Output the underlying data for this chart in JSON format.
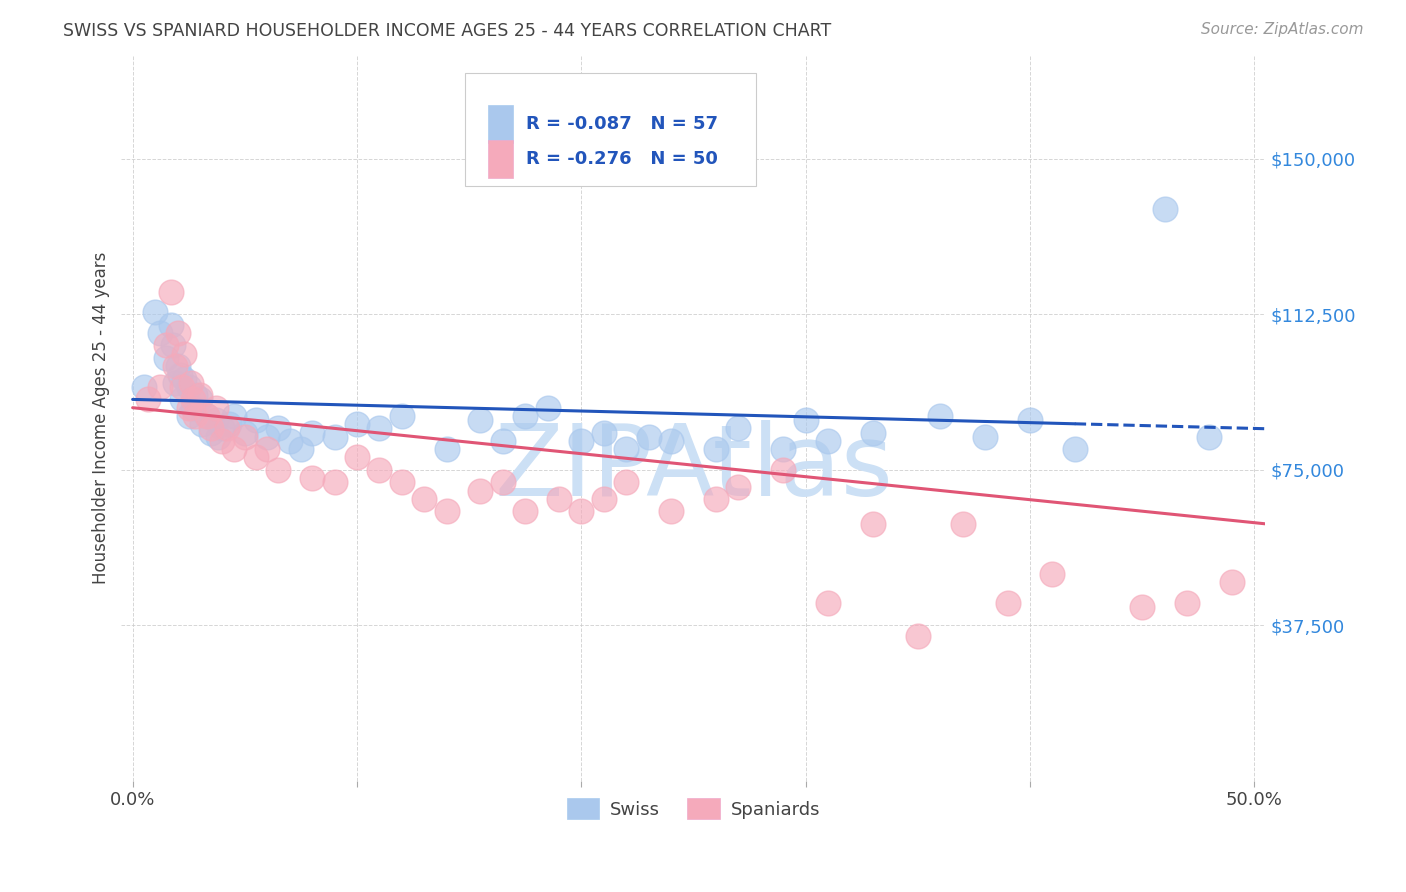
{
  "title": "SWISS VS SPANIARD HOUSEHOLDER INCOME AGES 25 - 44 YEARS CORRELATION CHART",
  "source": "Source: ZipAtlas.com",
  "ylabel": "Householder Income Ages 25 - 44 years",
  "xlim": [
    -0.005,
    0.505
  ],
  "ylim": [
    0,
    175000
  ],
  "yticks": [
    37500,
    75000,
    112500,
    150000
  ],
  "ytick_labels": [
    "$37,500",
    "$75,000",
    "$112,500",
    "$150,000"
  ],
  "xticks": [
    0.0,
    0.1,
    0.2,
    0.3,
    0.4,
    0.5
  ],
  "xtick_labels": [
    "0.0%",
    "",
    "",
    "",
    "",
    "50.0%"
  ],
  "swiss_R": -0.087,
  "swiss_N": 57,
  "spaniard_R": -0.276,
  "spaniard_N": 50,
  "swiss_color": "#aac8ed",
  "spaniard_color": "#f5aabb",
  "swiss_line_color": "#2255bb",
  "spaniard_line_color": "#e05575",
  "background_color": "#ffffff",
  "grid_color": "#cccccc",
  "title_color": "#444444",
  "axis_label_color": "#444444",
  "ytick_color": "#3388dd",
  "xtick_color": "#444444",
  "source_color": "#999999",
  "legend_text_color": "#2255bb",
  "watermark": "ZIPAtlas",
  "watermark_color": "#cce0f5",
  "watermark_fontsize": 72,
  "swiss_scatter_x": [
    0.005,
    0.01,
    0.012,
    0.015,
    0.017,
    0.018,
    0.019,
    0.02,
    0.021,
    0.022,
    0.023,
    0.025,
    0.025,
    0.027,
    0.028,
    0.03,
    0.031,
    0.033,
    0.035,
    0.037,
    0.038,
    0.04,
    0.043,
    0.045,
    0.05,
    0.055,
    0.06,
    0.065,
    0.07,
    0.075,
    0.08,
    0.09,
    0.1,
    0.11,
    0.12,
    0.14,
    0.155,
    0.165,
    0.175,
    0.185,
    0.2,
    0.21,
    0.22,
    0.23,
    0.24,
    0.26,
    0.27,
    0.29,
    0.3,
    0.31,
    0.33,
    0.36,
    0.38,
    0.4,
    0.42,
    0.46,
    0.48
  ],
  "swiss_scatter_y": [
    95000,
    113000,
    108000,
    102000,
    110000,
    105000,
    96000,
    100000,
    98000,
    92000,
    97000,
    95000,
    88000,
    90000,
    93000,
    92000,
    86000,
    88000,
    84000,
    87000,
    83000,
    85000,
    86000,
    88000,
    84000,
    87000,
    83000,
    85000,
    82000,
    80000,
    84000,
    83000,
    86000,
    85000,
    88000,
    80000,
    87000,
    82000,
    88000,
    90000,
    82000,
    84000,
    80000,
    83000,
    82000,
    80000,
    85000,
    80000,
    87000,
    82000,
    84000,
    88000,
    83000,
    87000,
    80000,
    138000,
    83000
  ],
  "spaniard_scatter_x": [
    0.007,
    0.012,
    0.015,
    0.017,
    0.019,
    0.02,
    0.022,
    0.023,
    0.025,
    0.026,
    0.027,
    0.028,
    0.03,
    0.033,
    0.035,
    0.037,
    0.04,
    0.042,
    0.045,
    0.05,
    0.055,
    0.06,
    0.065,
    0.08,
    0.09,
    0.1,
    0.11,
    0.12,
    0.13,
    0.14,
    0.155,
    0.165,
    0.175,
    0.19,
    0.2,
    0.21,
    0.22,
    0.24,
    0.26,
    0.27,
    0.29,
    0.31,
    0.33,
    0.35,
    0.37,
    0.39,
    0.41,
    0.45,
    0.47,
    0.49
  ],
  "spaniard_scatter_y": [
    92000,
    95000,
    105000,
    118000,
    100000,
    108000,
    95000,
    103000,
    90000,
    96000,
    92000,
    88000,
    93000,
    88000,
    85000,
    90000,
    82000,
    85000,
    80000,
    83000,
    78000,
    80000,
    75000,
    73000,
    72000,
    78000,
    75000,
    72000,
    68000,
    65000,
    70000,
    72000,
    65000,
    68000,
    65000,
    68000,
    72000,
    65000,
    68000,
    71000,
    75000,
    43000,
    62000,
    35000,
    62000,
    43000,
    50000,
    42000,
    43000,
    48000
  ],
  "swiss_line_x_solid_end": 0.42,
  "swiss_line_x_dash_start": 0.42,
  "swiss_line_x_end": 0.505
}
